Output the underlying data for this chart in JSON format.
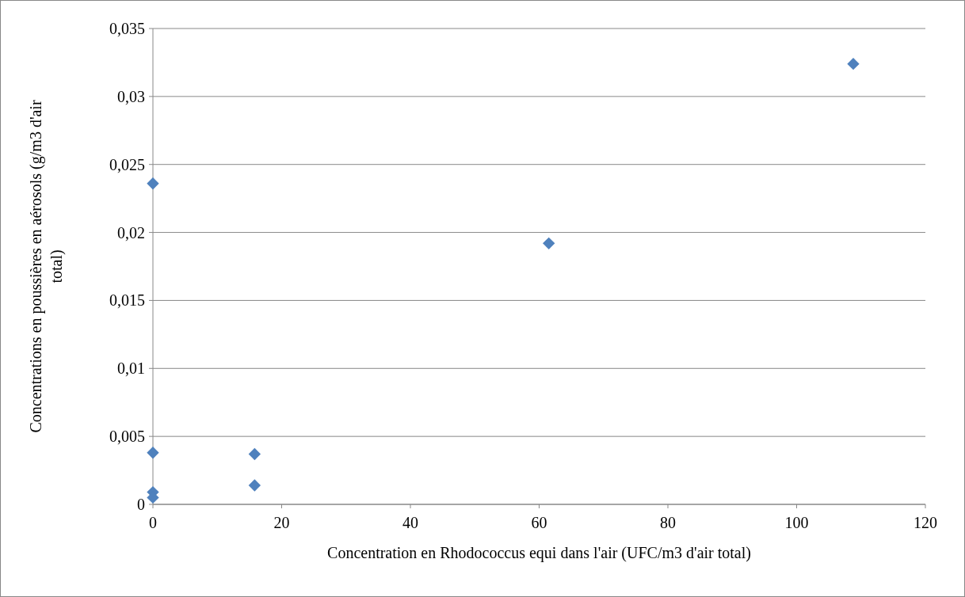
{
  "chart_data": {
    "type": "scatter",
    "xlabel": "Concentration en Rhodococcus equi dans l'air (UFC/m3 d'air total)",
    "ylabel": "Concentrations en poussières en aérosols (g/m3 d'air total)",
    "x": [
      0,
      0,
      0,
      0,
      15.8,
      15.8,
      61.5,
      108.8
    ],
    "series": [
      {
        "color": "#4f81bd",
        "values": [
          0.0236,
          0.0038,
          0.0009,
          0.0005,
          0.0037,
          0.0014,
          0.0192,
          0.0324
        ]
      }
    ],
    "xlim": [
      0,
      120
    ],
    "xticks": [
      0,
      20,
      40,
      60,
      80,
      100,
      120
    ],
    "ylim": [
      0,
      0.035
    ],
    "yticks": [
      0,
      {
        "value": 0.005,
        "label": "0,005"
      },
      {
        "value": 0.01,
        "label": "0,01"
      },
      {
        "value": 0.015,
        "label": "0,015"
      },
      {
        "value": 0.02,
        "label": "0,02"
      },
      {
        "value": 0.025,
        "label": "0,025"
      },
      {
        "value": 0.03,
        "label": "0,03"
      },
      {
        "value": 0.035,
        "label": "0,035"
      }
    ],
    "grid": "y",
    "marker": "diamond"
  }
}
